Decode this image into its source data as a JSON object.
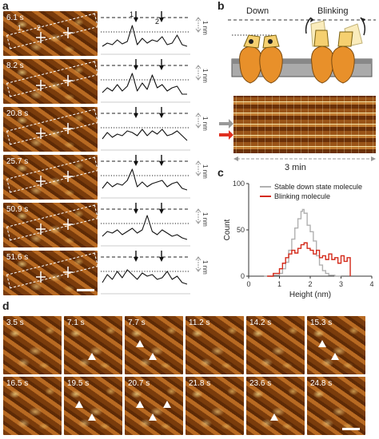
{
  "panel_a": {
    "letter": "a",
    "frames": [
      {
        "time": "6.1 s",
        "profile": [
          38,
          34,
          36,
          30,
          35,
          32,
          12,
          36,
          28,
          34,
          30,
          32,
          26,
          36,
          34,
          24,
          36,
          38
        ]
      },
      {
        "time": "8.2 s",
        "profile": [
          36,
          30,
          34,
          26,
          34,
          28,
          12,
          34,
          24,
          32,
          14,
          30,
          26,
          34,
          30,
          28,
          38,
          38
        ]
      },
      {
        "time": "20.8 s",
        "profile": [
          34,
          26,
          32,
          28,
          30,
          24,
          26,
          30,
          22,
          30,
          24,
          28,
          22,
          30,
          28,
          24,
          30,
          36
        ]
      },
      {
        "time": "25.7 s",
        "profile": [
          36,
          28,
          34,
          30,
          32,
          26,
          12,
          34,
          28,
          34,
          30,
          28,
          26,
          34,
          30,
          28,
          36,
          38
        ]
      },
      {
        "time": "50.9 s",
        "profile": [
          36,
          30,
          32,
          28,
          34,
          30,
          26,
          32,
          28,
          10,
          30,
          34,
          28,
          32,
          36,
          34,
          38,
          40
        ]
      },
      {
        "time": "51.6 s",
        "profile": [
          34,
          24,
          30,
          20,
          28,
          18,
          24,
          30,
          22,
          26,
          24,
          30,
          28,
          20,
          30,
          26,
          34,
          36
        ]
      }
    ],
    "peak_labels": [
      "1",
      "2"
    ],
    "scale_label": "1 nm"
  },
  "panel_b": {
    "letter": "b",
    "state_labels": [
      "Down",
      "Blinking"
    ],
    "kymo_time": "3 min"
  },
  "panel_c": {
    "letter": "c",
    "chart_data": {
      "type": "line",
      "xlabel": "Height (nm)",
      "ylabel": "Count",
      "xlim": [
        0,
        4
      ],
      "ylim": [
        0,
        100
      ],
      "xticks": [
        0,
        1,
        2,
        3,
        4
      ],
      "yticks": [
        0,
        50,
        100
      ],
      "series": [
        {
          "name": "Stable down state molecule",
          "color": "#b0b0b0",
          "x": [
            0.5,
            0.8,
            1.0,
            1.1,
            1.2,
            1.3,
            1.4,
            1.5,
            1.6,
            1.7,
            1.75,
            1.8,
            1.9,
            2.0,
            2.1,
            2.2,
            2.3,
            2.4,
            2.5,
            2.6,
            2.8,
            3.0
          ],
          "y": [
            0,
            1,
            3,
            8,
            15,
            28,
            40,
            52,
            62,
            70,
            72,
            68,
            55,
            48,
            38,
            22,
            12,
            6,
            3,
            1,
            0,
            0
          ]
        },
        {
          "name": "Blinking molecule",
          "color": "#d42a1a",
          "x": [
            0.6,
            0.8,
            1.0,
            1.1,
            1.2,
            1.3,
            1.4,
            1.5,
            1.6,
            1.7,
            1.8,
            1.9,
            2.0,
            2.1,
            2.2,
            2.3,
            2.4,
            2.5,
            2.6,
            2.7,
            2.8,
            2.9,
            3.0,
            3.1,
            3.2,
            3.3
          ],
          "y": [
            0,
            3,
            8,
            14,
            20,
            24,
            28,
            25,
            30,
            34,
            36,
            30,
            28,
            24,
            28,
            20,
            22,
            18,
            24,
            18,
            20,
            14,
            22,
            16,
            20,
            0
          ]
        }
      ]
    }
  },
  "panel_d": {
    "letter": "d",
    "frames": [
      {
        "time": "3.5 s",
        "arrows": 0
      },
      {
        "time": "7.1 s",
        "arrows": 1
      },
      {
        "time": "7.7 s",
        "arrows": 2
      },
      {
        "time": "11.2 s",
        "arrows": 0
      },
      {
        "time": "14.2 s",
        "arrows": 0
      },
      {
        "time": "15.3 s",
        "arrows": 2
      },
      {
        "time": "16.5 s",
        "arrows": 0
      },
      {
        "time": "19.5 s",
        "arrows": 2
      },
      {
        "time": "20.7 s",
        "arrows": 3
      },
      {
        "time": "21.8 s",
        "arrows": 0
      },
      {
        "time": "23.6 s",
        "arrows": 1
      },
      {
        "time": "24.8 s",
        "arrows": 0
      }
    ]
  }
}
